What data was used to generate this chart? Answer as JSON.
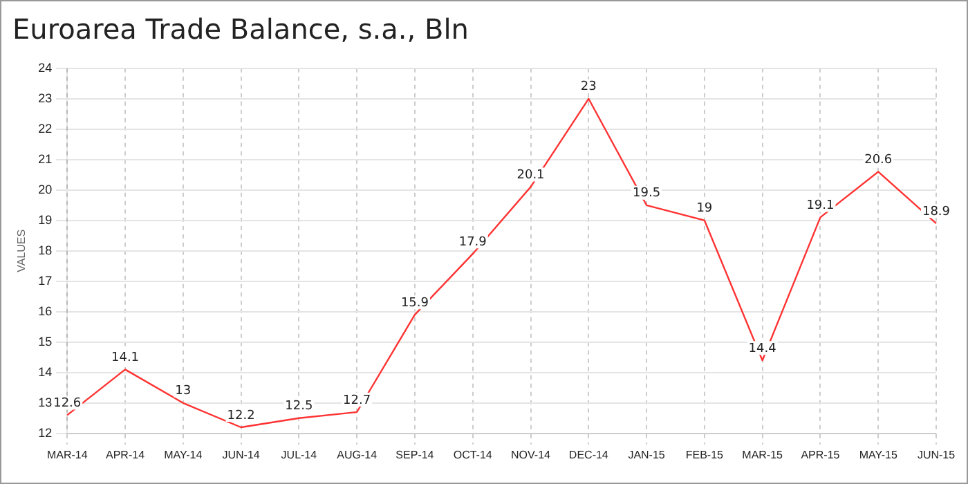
{
  "chart_data": {
    "type": "line",
    "title": "Euroarea Trade Balance, s.a., Bln",
    "ylabel": "VALUES",
    "categories": [
      "MAR-14",
      "APR-14",
      "MAY-14",
      "JUN-14",
      "JUL-14",
      "AUG-14",
      "SEP-14",
      "OCT-14",
      "NOV-14",
      "DEC-14",
      "JAN-15",
      "FEB-15",
      "MAR-15",
      "APR-15",
      "MAY-15",
      "JUN-15"
    ],
    "series": [
      {
        "color": "#ff3333",
        "values": [
          12.6,
          14.1,
          13,
          12.2,
          12.5,
          12.7,
          15.9,
          17.9,
          20.1,
          23,
          19.5,
          19,
          14.4,
          19.1,
          20.6,
          18.9
        ]
      }
    ],
    "ylim": [
      12,
      24
    ],
    "yticks": [
      12,
      13,
      14,
      15,
      16,
      17,
      18,
      19,
      20,
      21,
      22,
      23,
      24
    ],
    "grid": true,
    "legend": false,
    "marker": "none",
    "line_style": "solid",
    "data_labels": true
  }
}
